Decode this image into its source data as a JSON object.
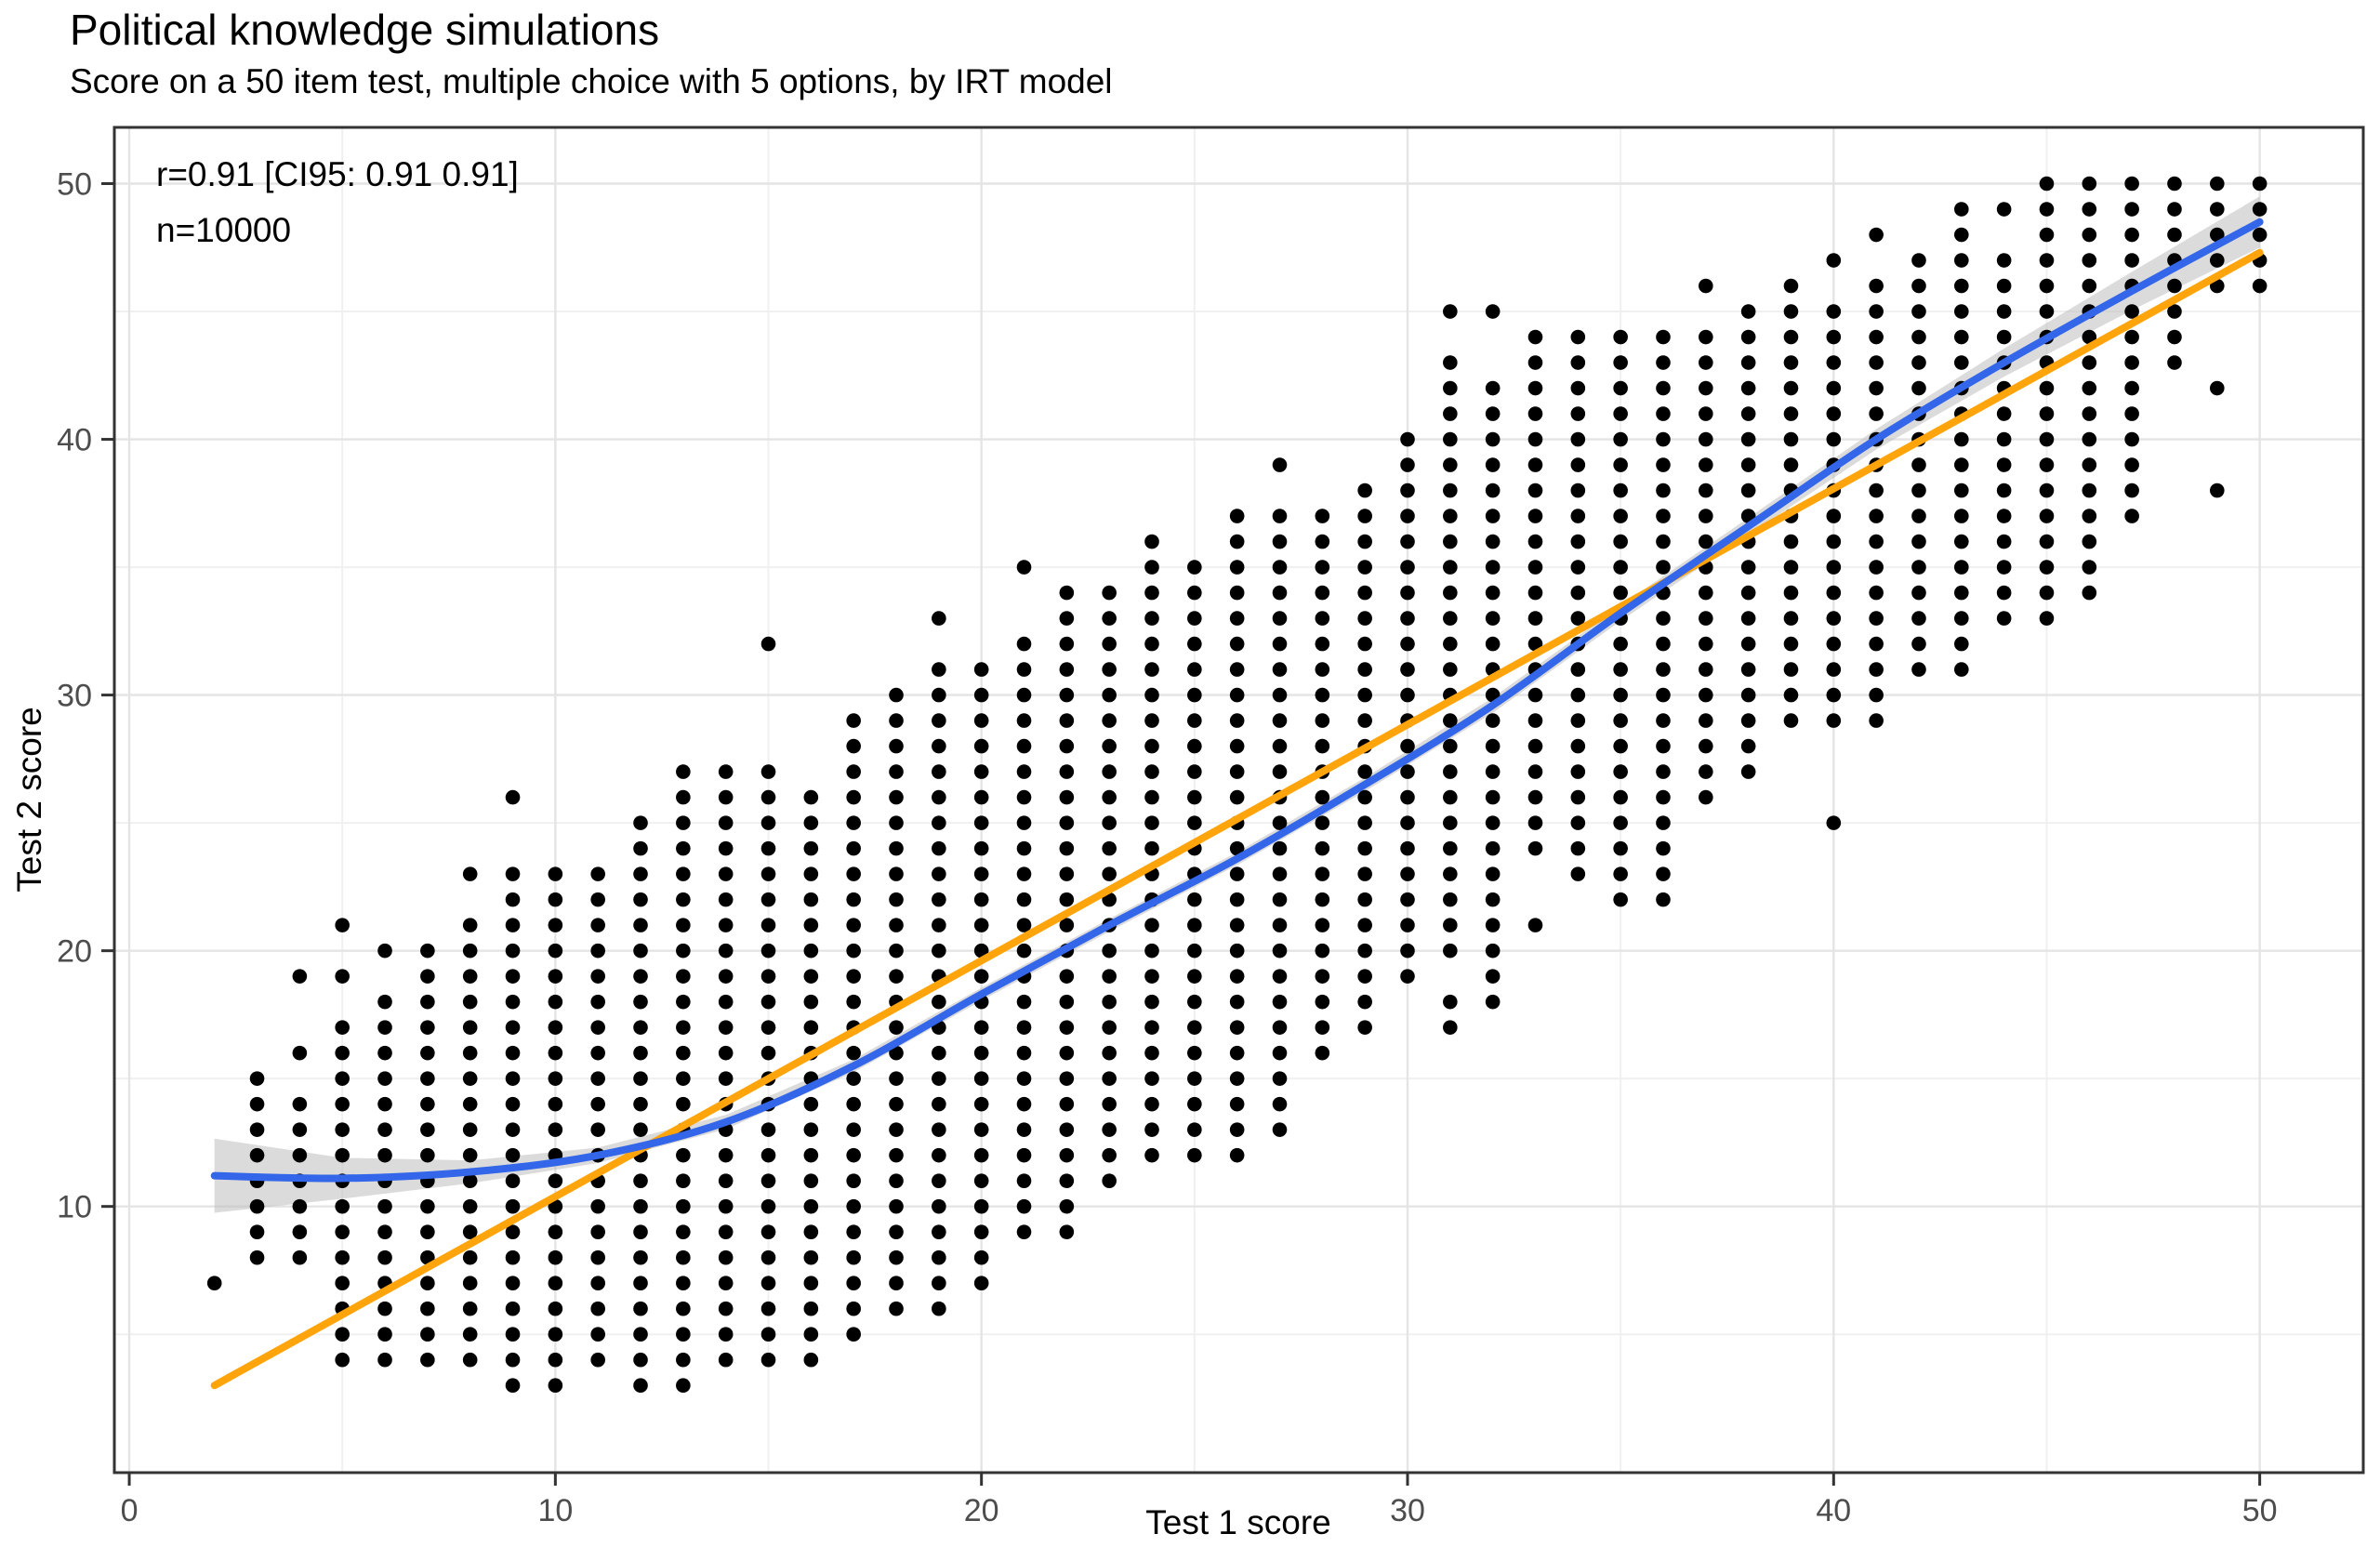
{
  "chart_data": {
    "type": "scatter",
    "title": "Political knowledge simulations",
    "subtitle": "Score on a 50 item test, multiple choice with 5 options, by IRT model",
    "annotation": {
      "line1": "r=0.91 [CI95: 0.91 0.91]",
      "line2": "n=10000"
    },
    "xlabel": "Test 1 score",
    "ylabel": "Test 2 score",
    "x_ticks": [
      0,
      10,
      20,
      30,
      40,
      50
    ],
    "y_ticks": [
      10,
      20,
      30,
      40,
      50
    ],
    "x_minor": [
      5,
      15,
      25,
      35,
      45
    ],
    "y_minor": [
      5,
      15,
      25,
      35,
      45
    ],
    "xlim": [
      -0.35,
      52.43
    ],
    "ylim": [
      -0.41,
      52.2
    ],
    "grid": true,
    "legend_position": "none",
    "n_points": 10000,
    "correlation": 0.91,
    "points_grid": [
      {
        "x": 2,
        "y_segments": [
          [
            7,
            7
          ]
        ]
      },
      {
        "x": 3,
        "y_segments": [
          [
            8,
            15
          ]
        ]
      },
      {
        "x": 4,
        "y_segments": [
          [
            8,
            14
          ],
          [
            16,
            16
          ],
          [
            19,
            19
          ]
        ]
      },
      {
        "x": 5,
        "y_segments": [
          [
            4,
            17
          ],
          [
            19,
            19
          ],
          [
            21,
            21
          ]
        ]
      },
      {
        "x": 6,
        "y_segments": [
          [
            4,
            18
          ],
          [
            20,
            20
          ]
        ]
      },
      {
        "x": 7,
        "y_segments": [
          [
            4,
            20
          ]
        ]
      },
      {
        "x": 8,
        "y_segments": [
          [
            4,
            21
          ],
          [
            23,
            23
          ]
        ]
      },
      {
        "x": 9,
        "y_segments": [
          [
            3,
            23
          ],
          [
            26,
            26
          ]
        ]
      },
      {
        "x": 10,
        "y_segments": [
          [
            3,
            23
          ]
        ]
      },
      {
        "x": 11,
        "y_segments": [
          [
            4,
            23
          ]
        ]
      },
      {
        "x": 12,
        "y_segments": [
          [
            3,
            25
          ]
        ]
      },
      {
        "x": 13,
        "y_segments": [
          [
            3,
            27
          ]
        ]
      },
      {
        "x": 14,
        "y_segments": [
          [
            4,
            27
          ]
        ]
      },
      {
        "x": 15,
        "y_segments": [
          [
            4,
            27
          ],
          [
            32,
            32
          ]
        ]
      },
      {
        "x": 16,
        "y_segments": [
          [
            4,
            26
          ]
        ]
      },
      {
        "x": 17,
        "y_segments": [
          [
            5,
            29
          ]
        ]
      },
      {
        "x": 18,
        "y_segments": [
          [
            6,
            30
          ]
        ]
      },
      {
        "x": 19,
        "y_segments": [
          [
            6,
            31
          ],
          [
            33,
            33
          ]
        ]
      },
      {
        "x": 20,
        "y_segments": [
          [
            7,
            31
          ]
        ]
      },
      {
        "x": 21,
        "y_segments": [
          [
            9,
            32
          ],
          [
            35,
            35
          ]
        ]
      },
      {
        "x": 22,
        "y_segments": [
          [
            9,
            34
          ]
        ]
      },
      {
        "x": 23,
        "y_segments": [
          [
            11,
            34
          ]
        ]
      },
      {
        "x": 24,
        "y_segments": [
          [
            12,
            36
          ]
        ]
      },
      {
        "x": 25,
        "y_segments": [
          [
            12,
            35
          ]
        ]
      },
      {
        "x": 26,
        "y_segments": [
          [
            12,
            37
          ]
        ]
      },
      {
        "x": 27,
        "y_segments": [
          [
            13,
            37
          ],
          [
            39,
            39
          ]
        ]
      },
      {
        "x": 28,
        "y_segments": [
          [
            16,
            37
          ]
        ]
      },
      {
        "x": 29,
        "y_segments": [
          [
            17,
            38
          ]
        ]
      },
      {
        "x": 30,
        "y_segments": [
          [
            19,
            40
          ]
        ]
      },
      {
        "x": 31,
        "y_segments": [
          [
            17,
            18
          ],
          [
            20,
            43
          ],
          [
            45,
            45
          ]
        ]
      },
      {
        "x": 32,
        "y_segments": [
          [
            18,
            42
          ],
          [
            45,
            45
          ]
        ]
      },
      {
        "x": 33,
        "y_segments": [
          [
            21,
            21
          ],
          [
            24,
            44
          ]
        ]
      },
      {
        "x": 34,
        "y_segments": [
          [
            23,
            44
          ]
        ]
      },
      {
        "x": 35,
        "y_segments": [
          [
            22,
            44
          ]
        ]
      },
      {
        "x": 36,
        "y_segments": [
          [
            22,
            44
          ]
        ]
      },
      {
        "x": 37,
        "y_segments": [
          [
            26,
            44
          ],
          [
            46,
            46
          ]
        ]
      },
      {
        "x": 38,
        "y_segments": [
          [
            27,
            45
          ]
        ]
      },
      {
        "x": 39,
        "y_segments": [
          [
            29,
            46
          ]
        ]
      },
      {
        "x": 40,
        "y_segments": [
          [
            25,
            25
          ],
          [
            29,
            45
          ],
          [
            47,
            47
          ]
        ]
      },
      {
        "x": 41,
        "y_segments": [
          [
            29,
            46
          ],
          [
            48,
            48
          ]
        ]
      },
      {
        "x": 42,
        "y_segments": [
          [
            31,
            47
          ]
        ]
      },
      {
        "x": 43,
        "y_segments": [
          [
            31,
            49
          ]
        ]
      },
      {
        "x": 44,
        "y_segments": [
          [
            33,
            47
          ],
          [
            49,
            49
          ]
        ]
      },
      {
        "x": 45,
        "y_segments": [
          [
            33,
            50
          ]
        ]
      },
      {
        "x": 46,
        "y_segments": [
          [
            34,
            50
          ]
        ]
      },
      {
        "x": 47,
        "y_segments": [
          [
            37,
            50
          ]
        ]
      },
      {
        "x": 48,
        "y_segments": [
          [
            43,
            50
          ]
        ]
      },
      {
        "x": 49,
        "y_segments": [
          [
            38,
            38
          ],
          [
            42,
            42
          ],
          [
            46,
            50
          ]
        ]
      },
      {
        "x": 50,
        "y_segments": [
          [
            46,
            50
          ]
        ]
      }
    ],
    "loess_line": {
      "name": "loess-smooth",
      "color": "#3366E8",
      "width": 8,
      "points": [
        [
          2,
          11.2
        ],
        [
          5,
          11.1
        ],
        [
          8,
          11.35
        ],
        [
          11,
          12.0
        ],
        [
          14,
          13.3
        ],
        [
          17,
          15.5
        ],
        [
          20,
          18.3
        ],
        [
          23,
          21.0
        ],
        [
          26,
          23.6
        ],
        [
          29,
          26.5
        ],
        [
          32,
          29.6
        ],
        [
          35,
          33.2
        ],
        [
          38,
          36.6
        ],
        [
          41,
          40.0
        ],
        [
          44,
          43.0
        ],
        [
          47,
          45.8
        ],
        [
          50,
          48.5
        ]
      ]
    },
    "linear_line": {
      "name": "linear-fit",
      "color": "#FFA40B",
      "width": 8,
      "points": [
        [
          2,
          3.0
        ],
        [
          50,
          47.3
        ]
      ]
    },
    "ci_band": {
      "name": "confidence-band",
      "color": "#BDBDBD",
      "opacity": 0.55,
      "points": [
        [
          2,
          9.75,
          12.65
        ],
        [
          5,
          10.3,
          11.9
        ],
        [
          8,
          10.9,
          11.8
        ],
        [
          11,
          11.7,
          12.3
        ],
        [
          14,
          13.02,
          13.58
        ],
        [
          17,
          15.25,
          15.75
        ],
        [
          20,
          18.05,
          18.55
        ],
        [
          23,
          20.75,
          21.25
        ],
        [
          26,
          23.35,
          23.85
        ],
        [
          29,
          26.23,
          26.77
        ],
        [
          32,
          29.3,
          29.9
        ],
        [
          35,
          32.9,
          33.5
        ],
        [
          38,
          36.27,
          36.93
        ],
        [
          41,
          39.6,
          40.4
        ],
        [
          44,
          42.45,
          43.55
        ],
        [
          47,
          45.05,
          46.55
        ],
        [
          50,
          47.5,
          49.5
        ]
      ]
    },
    "point_style": {
      "color": "#000000",
      "radius": 7.8
    },
    "colors": {
      "background": "#FFFFFF",
      "panel_background": "#FFFFFF",
      "panel_border": "#333333",
      "grid_major": "#E4E4E4",
      "grid_minor": "#F0F0F0",
      "tick_mark": "#333333",
      "tick_label": "#4D4D4D",
      "title_text": "#000000",
      "axis_title_text": "#000000",
      "annotation_text": "#000000"
    }
  }
}
